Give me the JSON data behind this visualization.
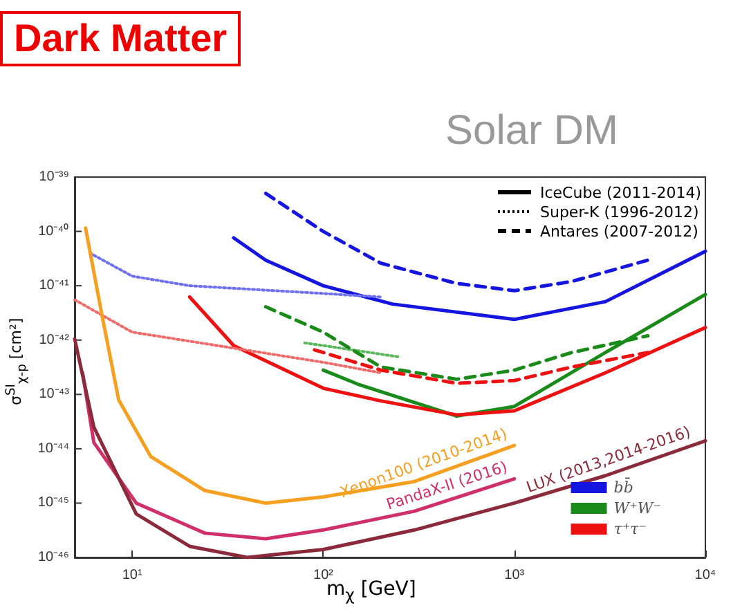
{
  "chart_data": {
    "type": "line",
    "title": "Dark Matter",
    "subtitle": "Solar DM",
    "xlabel": "m$_{χ}$ [GeV]",
    "ylabel": "σ$^{SI}$$_{χ-p}$ [cm²]",
    "log": "xy",
    "xlim": [
      5,
      10000
    ],
    "ylim": [
      1e-46,
      1e-39
    ],
    "xticks": [
      {
        "value": 10,
        "label": "10¹"
      },
      {
        "value": 100,
        "label": "10²"
      },
      {
        "value": 1000,
        "label": "10³"
      },
      {
        "value": 10000,
        "label": "10⁴"
      }
    ],
    "yticks": [
      {
        "value": 1e-46,
        "label": "10⁻⁴⁶"
      },
      {
        "value": 1e-45,
        "label": "10⁻⁴⁵"
      },
      {
        "value": 1e-44,
        "label": "10⁻⁴⁴"
      },
      {
        "value": 1e-43,
        "label": "10⁻⁴³"
      },
      {
        "value": 1e-42,
        "label": "10⁻⁴²"
      },
      {
        "value": 1e-41,
        "label": "10⁻⁴¹"
      },
      {
        "value": 1e-40,
        "label": "10⁻⁴⁰"
      },
      {
        "value": 1e-39,
        "label": "10⁻³⁹"
      }
    ],
    "grid": false,
    "legend": "bottom right",
    "marker": "none",
    "annotations": [
      "IceCube (2011-2014)",
      "Super-K (1996-2012)",
      "Antares (2007-2012)"
    ],
    "series": [
      {
        "name": "bb̄",
        "color": "#1515e0",
        "line_style": "solid",
        "x": [
          34,
          50,
          100,
          230,
          1000,
          3000,
          10000
        ],
        "values": [
          7.6e-41,
          2.95e-41,
          1e-41,
          4.6e-42,
          2.4e-42,
          5.1e-42,
          4.3e-41
        ]
      },
      {
        "color": "#6f6ff0",
        "line_style": "dotted",
        "x": [
          6,
          10,
          20,
          100,
          200
        ],
        "values": [
          4e-41,
          1.5e-41,
          1e-41,
          7.2e-42,
          6.2e-42
        ]
      },
      {
        "color": "#1515e0",
        "line_style": "dashed",
        "x": [
          50,
          100,
          200,
          500,
          1000,
          2000,
          5000
        ],
        "values": [
          5e-40,
          1e-40,
          2.6e-41,
          1.1e-41,
          8.1e-42,
          1.2e-41,
          2.95e-41
        ]
      },
      {
        "name": "W⁺W⁻",
        "color": "#1a8a1a",
        "line_style": "solid",
        "x": [
          100,
          155,
          500,
          1000,
          3000,
          10000
        ],
        "values": [
          2.8e-43,
          1.5e-43,
          4e-44,
          6e-44,
          5.9e-43,
          6.9e-42
        ]
      },
      {
        "color": "#5cb85c",
        "line_style": "dotted",
        "x": [
          80,
          250
        ],
        "values": [
          8.9e-43,
          4.9e-43
        ]
      },
      {
        "color": "#1a8a1a",
        "line_style": "dashed",
        "x": [
          50,
          100,
          200,
          500,
          1000,
          2000,
          5000
        ],
        "values": [
          4.1e-42,
          1.4e-42,
          3.2e-43,
          1.9e-43,
          2.8e-43,
          5.9e-43,
          1.2e-42
        ]
      },
      {
        "name": "τ⁺τ⁻",
        "color": "#ee1111",
        "line_style": "solid",
        "x": [
          20,
          34,
          100,
          200,
          500,
          1000,
          3000,
          10000
        ],
        "values": [
          6.2e-42,
          7.9e-43,
          1.3e-43,
          7.6e-44,
          4.2e-44,
          5e-44,
          2.5e-43,
          1.7e-42
        ]
      },
      {
        "color": "#f06a6a",
        "line_style": "dotted",
        "x": [
          5,
          10,
          100,
          200
        ],
        "values": [
          5.5e-42,
          1.4e-42,
          3.9e-43,
          2.5e-43
        ]
      },
      {
        "color": "#ee1111",
        "line_style": "dashed",
        "x": [
          90,
          200,
          500,
          1000,
          2000,
          5000
        ],
        "values": [
          6.6e-43,
          2.8e-43,
          1.6e-43,
          1.8e-43,
          3.2e-43,
          5.9e-43
        ]
      },
      {
        "name": "Xenon100 (2010-2014)",
        "color": "#f5a020",
        "line_style": "solid",
        "x": [
          5.7,
          7,
          8.5,
          12.5,
          24,
          50,
          100,
          300,
          1000
        ],
        "values": [
          1.15e-40,
          2.5e-42,
          7.9e-44,
          7.2e-45,
          1.7e-45,
          1e-45,
          1.3e-45,
          2.5e-45,
          1.15e-44
        ]
      },
      {
        "name": "PandaX-II (2016)",
        "color": "#d0306a",
        "line_style": "solid",
        "x": [
          5.5,
          6.3,
          10.5,
          24,
          50,
          100,
          300,
          1000
        ],
        "values": [
          2.5e-43,
          1.3e-44,
          1e-45,
          2.8e-46,
          2.2e-46,
          3.2e-46,
          7.1e-46,
          2.8e-45
        ]
      },
      {
        "name": "LUX (2013,2014-2016)",
        "color": "#8b2a3a",
        "line_style": "solid",
        "x": [
          5,
          6.3,
          10.5,
          20,
          40,
          100,
          300,
          1000,
          3000,
          10000
        ],
        "values": [
          1.05e-42,
          2.5e-44,
          6.3e-46,
          1.6e-46,
          1e-46,
          1.4e-46,
          3.2e-46,
          1e-45,
          3.2e-45,
          1.4e-44
        ]
      }
    ]
  }
}
